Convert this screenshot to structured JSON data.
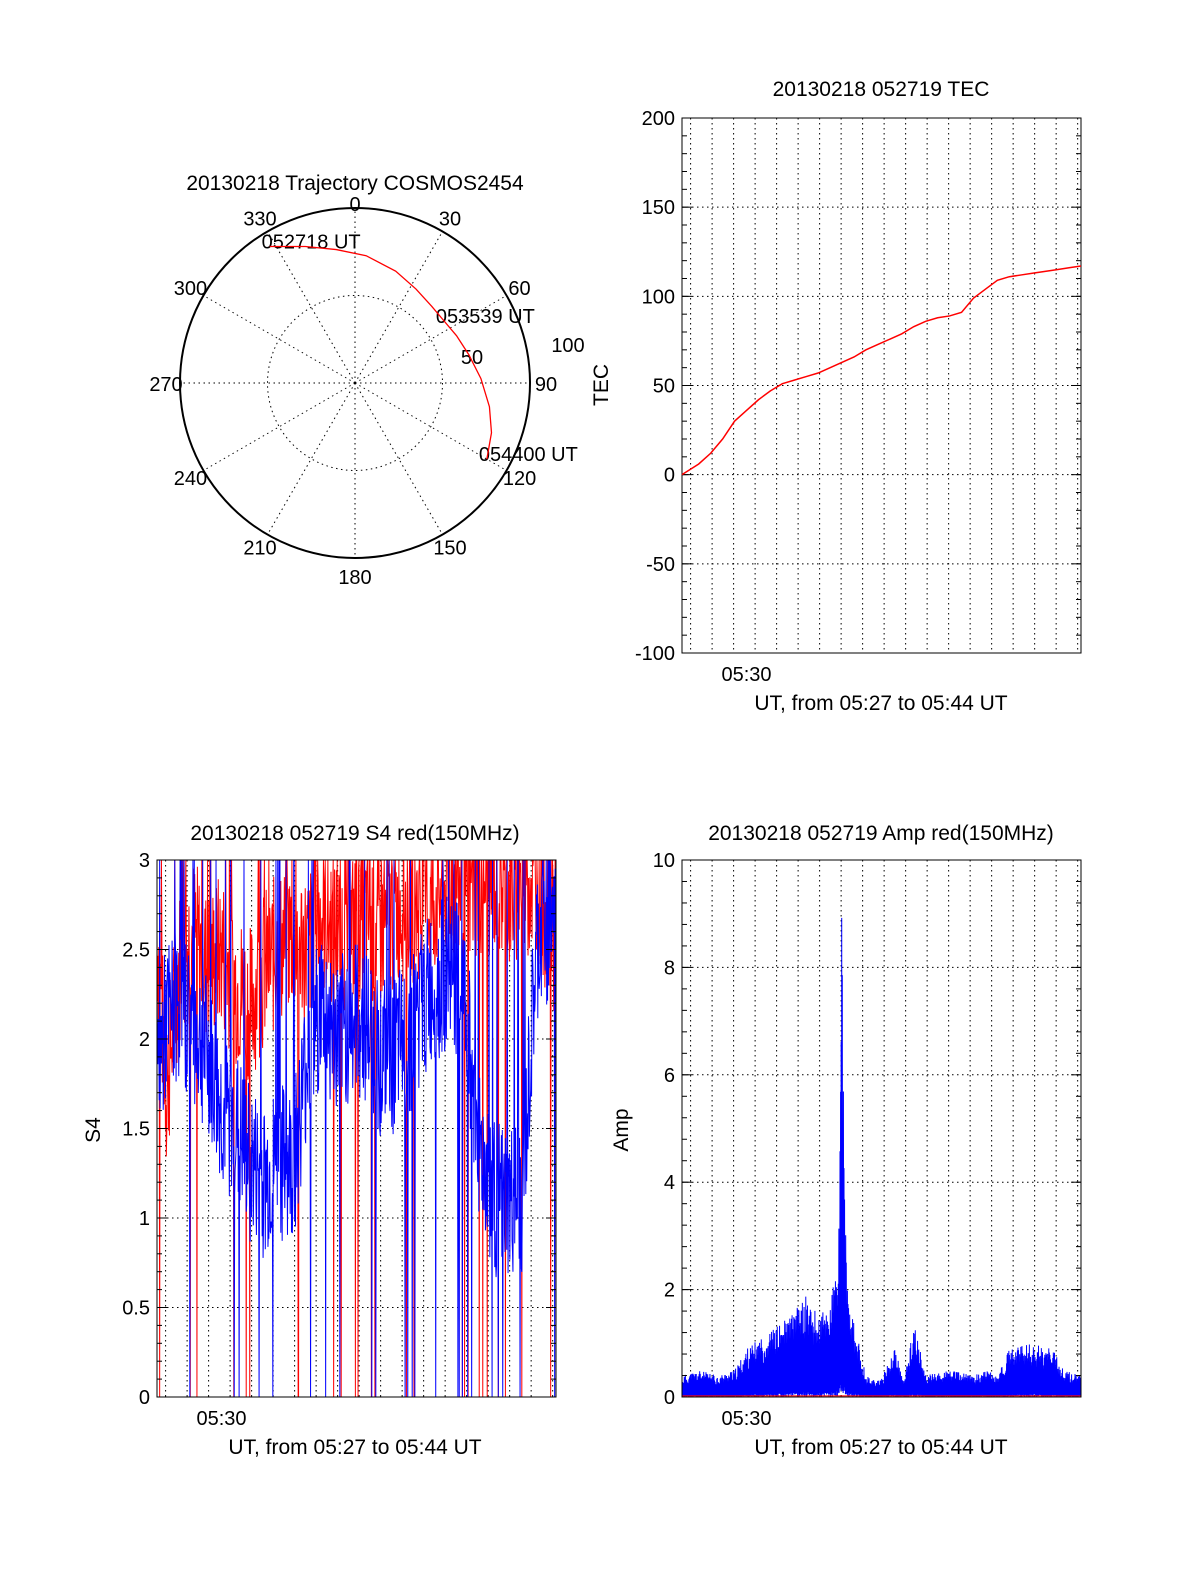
{
  "colors": {
    "red": "#ff0000",
    "blue": "#0000ff",
    "axis": "#000000"
  },
  "chart_data": [
    {
      "id": "polar",
      "type": "scatter",
      "projection": "polar",
      "title": "20130218 Trajectory COSMOS2454",
      "azimuth_labels": [
        "0",
        "30",
        "60",
        "90",
        "120",
        "150",
        "180",
        "210",
        "240",
        "270",
        "300",
        "330"
      ],
      "radial_tick_labels": [
        "50",
        "100"
      ],
      "radial_ticks": [
        50,
        100
      ],
      "rlim": [
        0,
        100
      ],
      "grid": true,
      "annotations": [
        {
          "text": "052718 UT",
          "az": 328,
          "r": 92
        },
        {
          "text": "053539 UT",
          "az": 55,
          "r": 62
        },
        {
          "text": "054400 UT",
          "az": 120,
          "r": 87
        }
      ],
      "series": [
        {
          "color": "red",
          "az": [
            328,
            340,
            352,
            5,
            20,
            33,
            45,
            55,
            65,
            76,
            88,
            100,
            110,
            120
          ],
          "r": [
            92,
            83,
            77,
            73,
            68,
            64,
            62,
            62,
            64,
            67,
            72,
            78,
            83,
            87
          ]
        }
      ]
    },
    {
      "id": "tec",
      "type": "line",
      "title": "20130218 052719 TEC",
      "xlabel": "UT, from 05:27 to 05:44 UT",
      "ylabel": "TEC",
      "xlim": [
        27.3,
        44.0
      ],
      "x_ticks": [
        30
      ],
      "x_tick_labels": [
        "05:30"
      ],
      "ylim": [
        -100,
        200
      ],
      "y_ticks": [
        -100,
        -50,
        0,
        50,
        100,
        150,
        200
      ],
      "y_tick_labels": [
        "-100",
        "-50",
        "0",
        "50",
        "100",
        "150",
        "200"
      ],
      "x_grid_step": 0.9,
      "grid": true,
      "series": [
        {
          "color": "red",
          "x": [
            27.3,
            28.0,
            28.5,
            29.0,
            29.5,
            30.0,
            30.5,
            31.0,
            31.5,
            32.0,
            32.5,
            33.0,
            33.5,
            34.0,
            34.5,
            35.0,
            35.5,
            36.0,
            36.5,
            37.0,
            37.5,
            38.0,
            38.5,
            39.0,
            39.5,
            40.0,
            40.5,
            41.0,
            41.5,
            42.0,
            42.5,
            43.0,
            43.5,
            44.0
          ],
          "y": [
            0,
            6,
            12,
            20,
            30,
            36,
            42,
            47,
            51,
            53,
            55,
            57,
            60,
            63,
            66,
            70,
            73,
            76,
            79,
            83,
            86,
            88,
            89,
            91,
            99,
            104,
            109,
            111,
            112,
            113,
            114,
            115,
            116,
            117
          ]
        }
      ]
    },
    {
      "id": "s4",
      "type": "line",
      "title": "20130218 052719 S4 red(150MHz)",
      "xlabel": "UT, from 05:27 to 05:44 UT",
      "ylabel": "S4",
      "xlim": [
        27.3,
        44.0
      ],
      "x_ticks": [
        30
      ],
      "x_tick_labels": [
        "05:30"
      ],
      "ylim": [
        0,
        3
      ],
      "y_ticks": [
        0,
        0.5,
        1,
        1.5,
        2,
        2.5,
        3
      ],
      "y_tick_labels": [
        "0",
        "0.5",
        "1",
        "1.5",
        "2",
        "2.5",
        "3"
      ],
      "x_grid_step": 0.9,
      "grid": true,
      "series": [
        {
          "color": "red",
          "x": [
            27.3,
            27.7,
            28.2,
            28.8,
            29.4,
            30.0,
            30.6,
            31.2,
            31.8,
            32.4,
            33.0,
            33.6,
            34.2,
            34.8,
            35.4,
            36.0,
            36.6,
            37.2,
            37.8,
            38.4,
            39.0,
            39.6,
            40.2,
            40.8,
            41.4,
            42.0,
            42.6,
            43.2,
            43.8
          ],
          "y": [
            2.6,
            1.7,
            2.4,
            2.6,
            2.4,
            2.5,
            2.3,
            2.2,
            2.4,
            2.5,
            2.6,
            2.5,
            2.7,
            2.6,
            2.6,
            2.7,
            2.6,
            2.7,
            2.8,
            2.7,
            2.8,
            2.9,
            2.8,
            2.9,
            2.9,
            2.8,
            2.9,
            2.9,
            2.6
          ]
        },
        {
          "color": "blue",
          "x": [
            27.3,
            27.7,
            28.2,
            28.8,
            29.4,
            30.0,
            30.6,
            31.2,
            31.8,
            32.4,
            33.0,
            33.6,
            34.2,
            34.8,
            35.4,
            36.0,
            36.6,
            37.2,
            37.8,
            38.4,
            39.0,
            39.6,
            40.2,
            40.8,
            41.4,
            42.0,
            42.6,
            43.2,
            43.8
          ],
          "y": [
            1.8,
            2.1,
            2.2,
            2.1,
            1.9,
            1.6,
            1.5,
            1.3,
            1.2,
            1.3,
            1.3,
            1.9,
            2.2,
            2.0,
            2.1,
            2.1,
            1.9,
            1.9,
            2.0,
            2.2,
            2.3,
            2.4,
            2.2,
            1.4,
            1.1,
            1.05,
            1.1,
            2.5,
            2.7
          ]
        }
      ]
    },
    {
      "id": "amp",
      "type": "line",
      "title": "20130218 052719 Amp red(150MHz)",
      "xlabel": "UT, from 05:27 to 05:44 UT",
      "ylabel": "Amp",
      "xlim": [
        27.3,
        44.0
      ],
      "x_ticks": [
        30
      ],
      "x_tick_labels": [
        "05:30"
      ],
      "ylim": [
        0,
        10
      ],
      "y_ticks": [
        0,
        2,
        4,
        6,
        8,
        10
      ],
      "y_tick_labels": [
        "0",
        "2",
        "4",
        "6",
        "8",
        "10"
      ],
      "x_grid_step": 0.9,
      "grid": true,
      "series": [
        {
          "color": "blue",
          "x": [
            27.3,
            28.0,
            28.8,
            29.5,
            30.0,
            30.6,
            31.2,
            32.0,
            32.5,
            33.0,
            33.5,
            33.8,
            33.9,
            34.0,
            34.1,
            34.2,
            34.3,
            34.5,
            35.0,
            35.6,
            36.2,
            36.6,
            37.0,
            37.5,
            38.5,
            39.5,
            40.0,
            40.5,
            41.0,
            42.0,
            42.8,
            43.3,
            44.0
          ],
          "y": [
            0.4,
            0.5,
            0.4,
            0.5,
            0.9,
            1.1,
            1.3,
            1.6,
            1.9,
            1.5,
            1.8,
            2.5,
            3.8,
            10.0,
            4.5,
            2.3,
            1.6,
            1.4,
            0.4,
            0.3,
            0.9,
            0.3,
            1.4,
            0.4,
            0.5,
            0.4,
            0.5,
            0.4,
            0.9,
            1.0,
            0.9,
            0.5,
            0.4
          ]
        },
        {
          "color": "red",
          "x": [
            27.3,
            44.0
          ],
          "y": [
            0.02,
            0.02
          ]
        }
      ]
    }
  ]
}
